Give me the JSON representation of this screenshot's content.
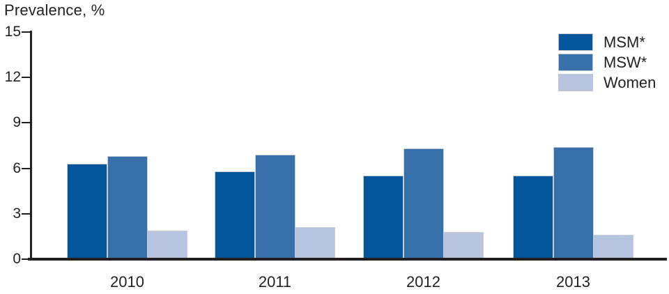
{
  "title": "Prevalence, %",
  "chart_data": {
    "type": "bar",
    "title": "Prevalence, %",
    "xlabel": "",
    "ylabel": "Prevalence, %",
    "categories": [
      "2010",
      "2011",
      "2012",
      "2013"
    ],
    "series": [
      {
        "name": "MSM*",
        "color": "#04569a",
        "values": [
          6.3,
          5.8,
          5.5,
          5.5
        ]
      },
      {
        "name": "MSW*",
        "color": "#3870ab",
        "values": [
          6.8,
          6.9,
          7.3,
          7.4
        ]
      },
      {
        "name": "Women",
        "color": "#b7c4e0",
        "values": [
          1.9,
          2.1,
          1.8,
          1.6
        ]
      }
    ],
    "yticks": [
      0,
      3,
      6,
      9,
      12,
      15
    ],
    "ylim": [
      0,
      15
    ],
    "grid": false,
    "legend_position": "top-right"
  },
  "colors": {
    "axis": "#231f20",
    "text": "#231f20",
    "bar_border": "#c9cdd6"
  }
}
